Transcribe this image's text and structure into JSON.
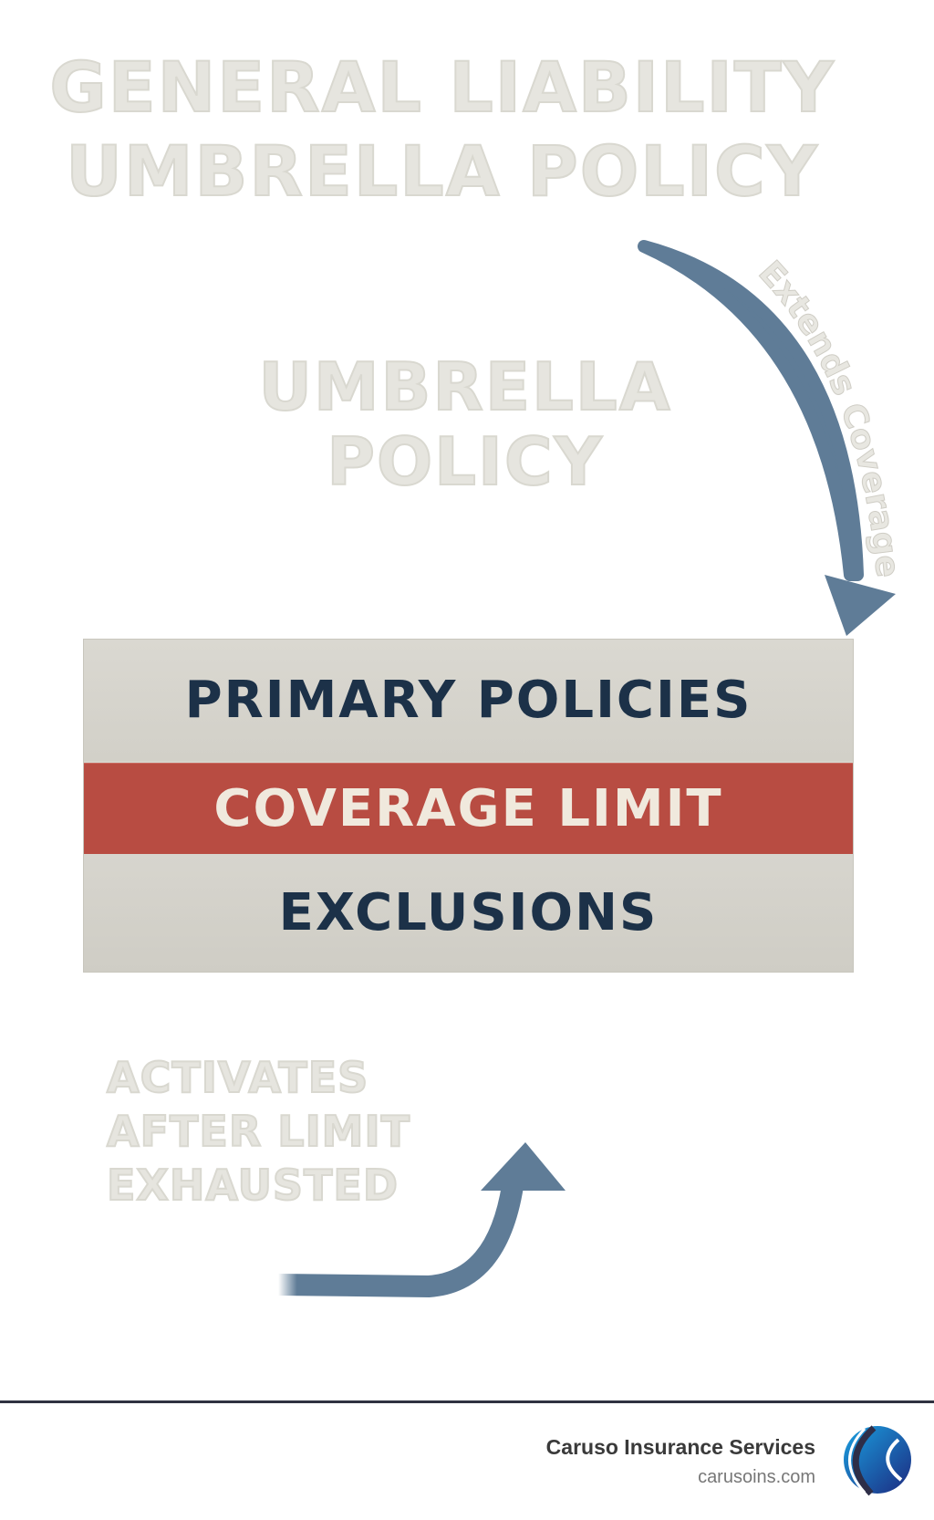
{
  "title": {
    "line1": "GENERAL LIABILITY",
    "line2": "UMBRELLA POLICY"
  },
  "umbrella": {
    "line1": "UMBRELLA",
    "line2": "POLICY"
  },
  "arrow_top": {
    "label": "Extends Coverage"
  },
  "stack": {
    "rows": [
      {
        "label": "PRIMARY POLICIES"
      },
      {
        "label": "COVERAGE LIMIT"
      },
      {
        "label": "EXCLUSIONS"
      }
    ]
  },
  "activates": {
    "line1": "ACTIVATES",
    "line2": "AFTER LIMIT",
    "line3": "EXHAUSTED"
  },
  "footer": {
    "company": "Caruso Insurance Services",
    "website": "carusoins.com"
  },
  "colors": {
    "arrow": "#5f7c97",
    "highlight": "#b84c42",
    "text_dark": "#1c3148",
    "ghost_text": "#e6e5df"
  }
}
